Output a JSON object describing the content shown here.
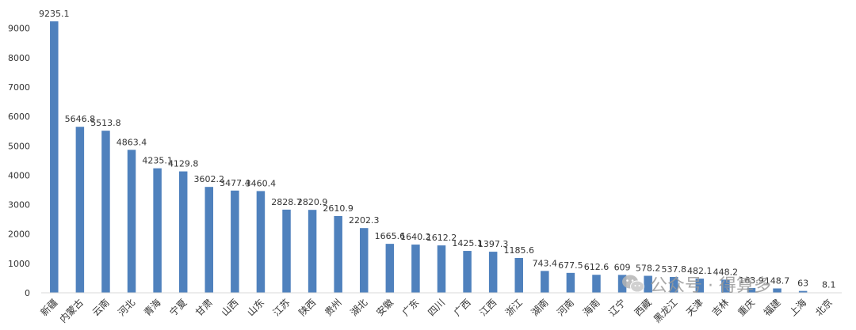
{
  "chart_data": {
    "type": "bar",
    "categories": [
      "新疆",
      "内蒙古",
      "云南",
      "河北",
      "青海",
      "宁夏",
      "甘肃",
      "山西",
      "山东",
      "江苏",
      "陕西",
      "贵州",
      "湖北",
      "安徽",
      "广东",
      "四川",
      "广西",
      "江西",
      "浙江",
      "湖南",
      "河南",
      "海南",
      "辽宁",
      "西藏",
      "黑龙江",
      "天津",
      "吉林",
      "重庆",
      "福建",
      "上海",
      "北京"
    ],
    "values": [
      9235.1,
      5646.8,
      5513.8,
      4863.4,
      4235.1,
      4129.8,
      3602.2,
      3477.4,
      3460.4,
      2828.7,
      2820.9,
      2610.9,
      2202.3,
      1665.6,
      1640.2,
      1612.2,
      1425.1,
      1397.3,
      1185.6,
      743.4,
      677.5,
      612.6,
      609,
      578.2,
      537.8,
      482.1,
      448.2,
      163.9,
      148.7,
      63,
      8.1
    ],
    "value_labels": [
      "9235.1",
      "5646.8",
      "5513.8",
      "4863.4",
      "4235.1",
      "4129.8",
      "3602.2",
      "3477.4",
      "3460.4",
      "2828.7",
      "2820.9",
      "2610.9",
      "2202.3",
      "1665.6",
      "1640.2",
      "1612.2",
      "1425.1",
      "1397.3",
      "1185.6",
      "743.4",
      "677.5",
      "612.6",
      "609",
      "578.2",
      "537.8",
      "482.1",
      "448.2",
      "163.9",
      "148.7",
      "63",
      "8.1"
    ],
    "ylim": [
      0,
      9000
    ],
    "yticks": [
      0,
      1000,
      2000,
      3000,
      4000,
      5000,
      6000,
      7000,
      8000,
      9000
    ],
    "ytick_labels": [
      "0",
      "1000",
      "2000",
      "3000",
      "4000",
      "5000",
      "6000",
      "7000",
      "8000",
      "9000"
    ],
    "bar_color": "#4f81bd",
    "grid": false,
    "legend": "none"
  },
  "watermark": {
    "text": "公众号 · 得算多",
    "icon": "wechat-icon"
  }
}
